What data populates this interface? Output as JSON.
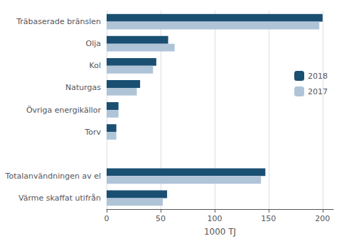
{
  "chart_data": {
    "type": "bar",
    "orientation": "horizontal",
    "categories": [
      "Värme skaffat utifrån",
      "Totalanvändningen av el",
      null,
      "Torv",
      "Övriga energikällor",
      "Naturgas",
      "Kol",
      "Olja",
      "Träbaserade bränslen"
    ],
    "series": [
      {
        "name": "2018",
        "color": "#1a4f72",
        "values": [
          56,
          147,
          0,
          9,
          11,
          31,
          46,
          57,
          200
        ]
      },
      {
        "name": "2017",
        "color": "#b0c4d8",
        "values": [
          52,
          143,
          0,
          9,
          11,
          28,
          43,
          63,
          197
        ]
      }
    ],
    "xlabel": "1000 TJ",
    "xlim": [
      0,
      210
    ],
    "xticks": [
      0,
      50,
      100,
      150,
      200
    ],
    "grid": true,
    "legend": "right"
  }
}
